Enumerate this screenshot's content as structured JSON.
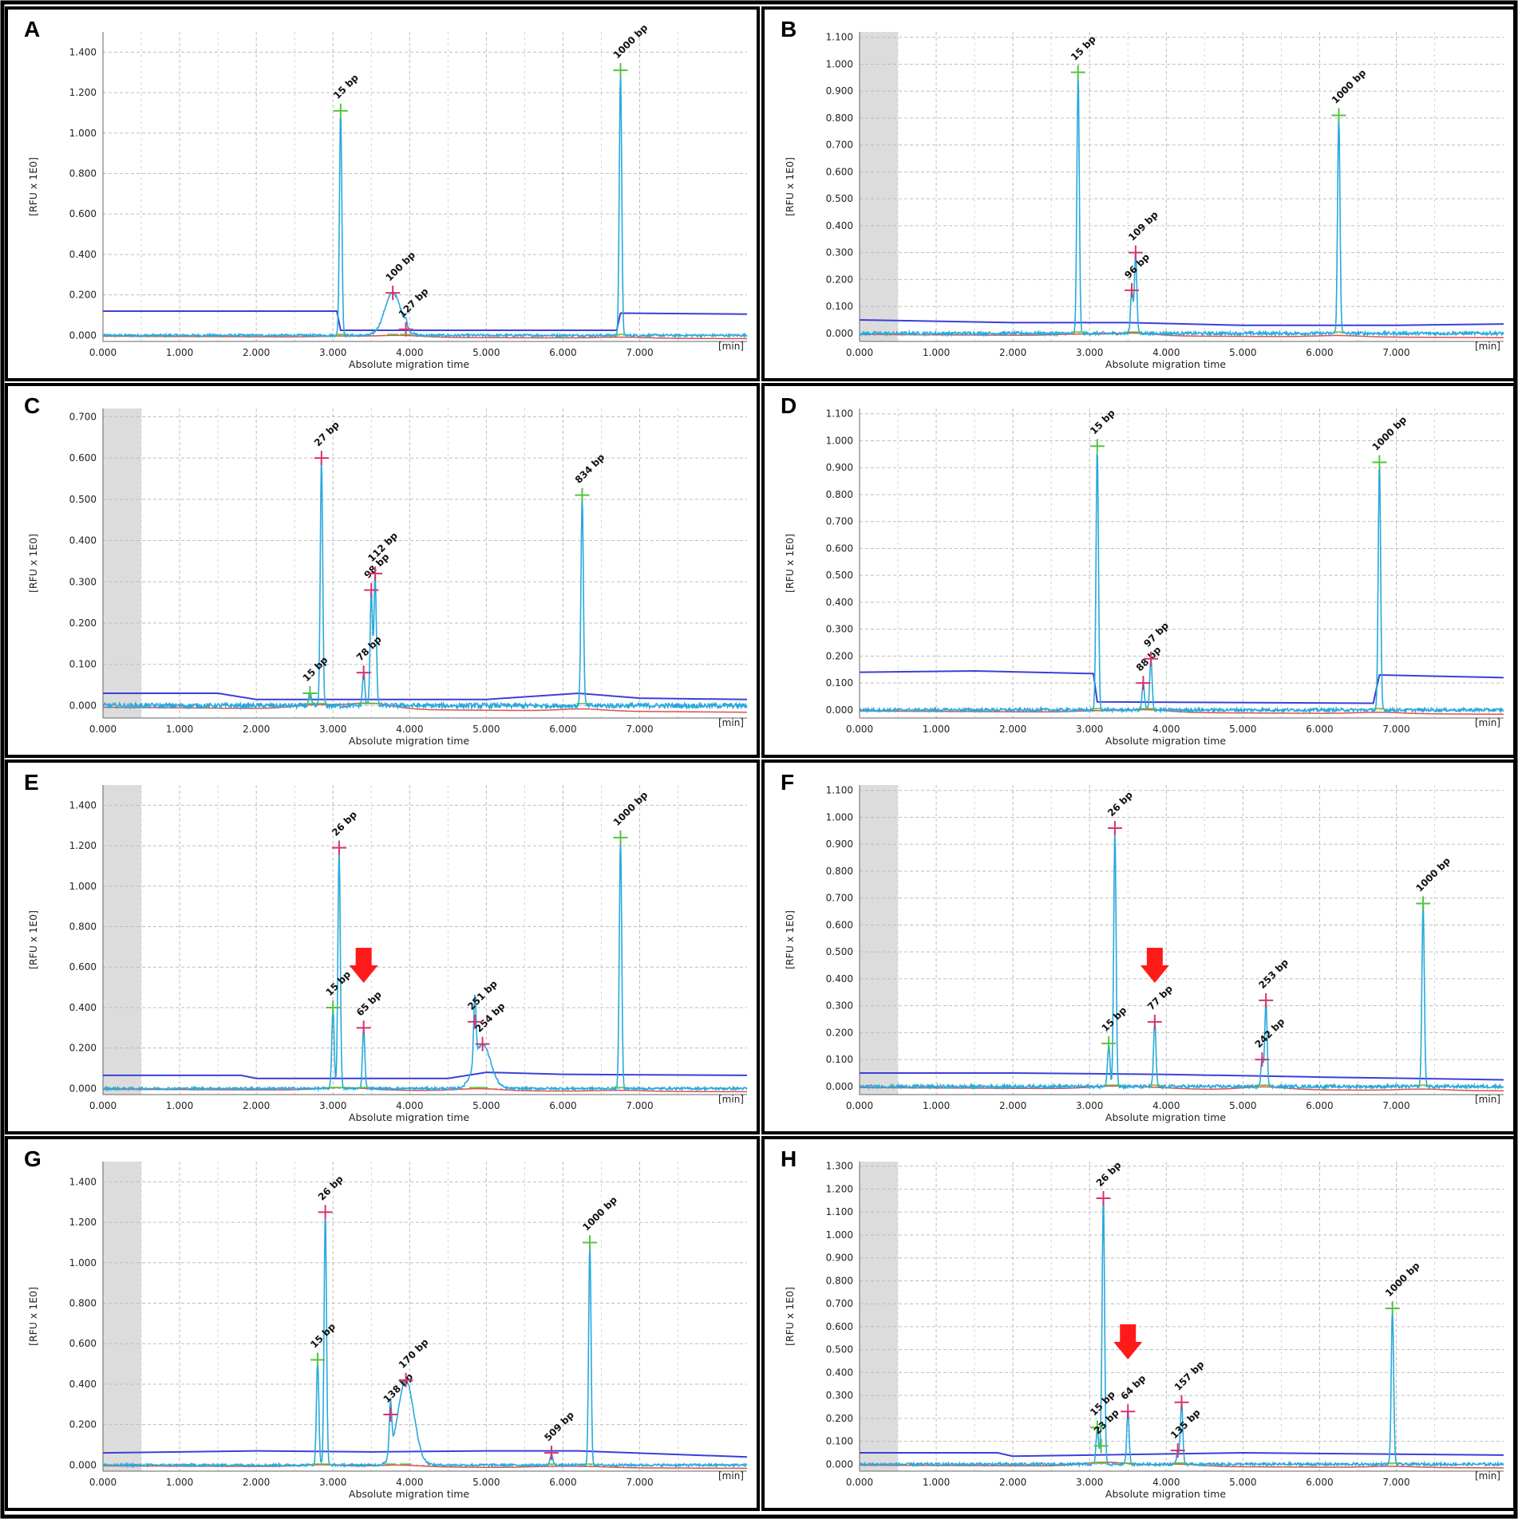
{
  "colors": {
    "trace": "#29a9dc",
    "baseline": "#3c3fd8",
    "red_line": "#e0504a",
    "peak_marker_green": "#53c441",
    "peak_marker_pink": "#d6336c",
    "arrow": "#ff1a1a",
    "grid": "#bdbdbd",
    "gray_band": "#dcdcdc"
  },
  "chart_data": [
    {
      "panel": "A",
      "type": "line",
      "xlabel": "Absolute migration time",
      "ylabel": "[RFU x 1E0]",
      "xunit": "[min]",
      "xlim": [
        0,
        8.4
      ],
      "ylim": [
        -0.03,
        1.5
      ],
      "xticks": [
        "0.000",
        "1.000",
        "2.000",
        "3.000",
        "4.000",
        "5.000",
        "6.000",
        "7.000"
      ],
      "yticks": [
        "0.000",
        "0.200",
        "0.400",
        "0.600",
        "0.800",
        "1.000",
        "1.200",
        "1.400"
      ],
      "ytick_values": [
        0,
        0.2,
        0.4,
        0.6,
        0.8,
        1.0,
        1.2,
        1.4
      ],
      "gray_band": false,
      "baseline": [
        [
          0,
          0.12
        ],
        [
          3.05,
          0.12
        ],
        [
          3.1,
          0.025
        ],
        [
          6.7,
          0.025
        ],
        [
          6.75,
          0.11
        ],
        [
          8.4,
          0.105
        ]
      ],
      "peaks": [
        {
          "label": "15 bp",
          "x": 3.1,
          "y": 1.11,
          "marker": "green"
        },
        {
          "label": "100 bp",
          "x": 3.78,
          "y": 0.21,
          "marker": "pink",
          "width": 0.15
        },
        {
          "label": "127 bp",
          "x": 3.95,
          "y": 0.03,
          "marker": "pink"
        },
        {
          "label": "1000 bp",
          "x": 6.75,
          "y": 1.31,
          "marker": "green"
        }
      ],
      "arrow_x": null
    },
    {
      "panel": "B",
      "type": "line",
      "xlabel": "Absolute migration time",
      "ylabel": "[RFU x 1E0]",
      "xunit": "[min]",
      "xlim": [
        0,
        8.4
      ],
      "ylim": [
        -0.03,
        1.12
      ],
      "xticks": [
        "0.000",
        "1.000",
        "2.000",
        "3.000",
        "4.000",
        "5.000",
        "6.000",
        "7.000"
      ],
      "yticks": [
        "0.000",
        "0.100",
        "0.200",
        "0.300",
        "0.400",
        "0.500",
        "0.600",
        "0.700",
        "0.800",
        "0.900",
        "1.000",
        "1.100"
      ],
      "ytick_values": [
        0,
        0.1,
        0.2,
        0.3,
        0.4,
        0.5,
        0.6,
        0.7,
        0.8,
        0.9,
        1.0,
        1.1
      ],
      "gray_band": true,
      "baseline": [
        [
          0,
          0.05
        ],
        [
          2,
          0.04
        ],
        [
          3.5,
          0.04
        ],
        [
          5,
          0.03
        ],
        [
          7,
          0.03
        ],
        [
          8.4,
          0.035
        ]
      ],
      "peaks": [
        {
          "label": "15 bp",
          "x": 2.85,
          "y": 0.97,
          "marker": "green"
        },
        {
          "label": "96 bp",
          "x": 3.55,
          "y": 0.16,
          "marker": "pink"
        },
        {
          "label": "109 bp",
          "x": 3.6,
          "y": 0.3,
          "marker": "pink"
        },
        {
          "label": "1000 bp",
          "x": 6.25,
          "y": 0.81,
          "marker": "green"
        }
      ],
      "arrow_x": null
    },
    {
      "panel": "C",
      "type": "line",
      "xlabel": "Absolute migration time",
      "ylabel": "[RFU x 1E0]",
      "xunit": "[min]",
      "xlim": [
        0,
        8.4
      ],
      "ylim": [
        -0.03,
        0.72
      ],
      "xticks": [
        "0.000",
        "1.000",
        "2.000",
        "3.000",
        "4.000",
        "5.000",
        "6.000",
        "7.000"
      ],
      "yticks": [
        "0.000",
        "0.100",
        "0.200",
        "0.300",
        "0.400",
        "0.500",
        "0.600",
        "0.700"
      ],
      "ytick_values": [
        0,
        0.1,
        0.2,
        0.3,
        0.4,
        0.5,
        0.6,
        0.7
      ],
      "gray_band": true,
      "baseline": [
        [
          0,
          0.03
        ],
        [
          1.5,
          0.03
        ],
        [
          2,
          0.015
        ],
        [
          5,
          0.015
        ],
        [
          6.2,
          0.03
        ],
        [
          7,
          0.018
        ],
        [
          8.4,
          0.015
        ]
      ],
      "peaks": [
        {
          "label": "15 bp",
          "x": 2.7,
          "y": 0.03,
          "marker": "green"
        },
        {
          "label": "27 bp",
          "x": 2.85,
          "y": 0.6,
          "marker": "pink"
        },
        {
          "label": "78 bp",
          "x": 3.4,
          "y": 0.08,
          "marker": "pink"
        },
        {
          "label": "98 bp",
          "x": 3.5,
          "y": 0.28,
          "marker": "pink"
        },
        {
          "label": "112 bp",
          "x": 3.55,
          "y": 0.32,
          "marker": "pink"
        },
        {
          "label": "834 bp",
          "x": 6.25,
          "y": 0.51,
          "marker": "green"
        }
      ],
      "arrow_x": null
    },
    {
      "panel": "D",
      "type": "line",
      "xlabel": "Absolute migration time",
      "ylabel": "[RFU x 1E0]",
      "xunit": "[min]",
      "xlim": [
        0,
        8.4
      ],
      "ylim": [
        -0.03,
        1.12
      ],
      "xticks": [
        "0.000",
        "1.000",
        "2.000",
        "3.000",
        "4.000",
        "5.000",
        "6.000",
        "7.000"
      ],
      "yticks": [
        "0.000",
        "0.100",
        "0.200",
        "0.300",
        "0.400",
        "0.500",
        "0.600",
        "0.700",
        "0.800",
        "0.900",
        "1.000",
        "1.100"
      ],
      "ytick_values": [
        0,
        0.1,
        0.2,
        0.3,
        0.4,
        0.5,
        0.6,
        0.7,
        0.8,
        0.9,
        1.0,
        1.1
      ],
      "gray_band": false,
      "baseline": [
        [
          0,
          0.14
        ],
        [
          1.5,
          0.145
        ],
        [
          3.05,
          0.135
        ],
        [
          3.1,
          0.03
        ],
        [
          6.7,
          0.025
        ],
        [
          6.78,
          0.13
        ],
        [
          8.4,
          0.12
        ]
      ],
      "peaks": [
        {
          "label": "15 bp",
          "x": 3.1,
          "y": 0.98,
          "marker": "green"
        },
        {
          "label": "88 bp",
          "x": 3.7,
          "y": 0.1,
          "marker": "pink"
        },
        {
          "label": "97 bp",
          "x": 3.8,
          "y": 0.19,
          "marker": "pink"
        },
        {
          "label": "1000 bp",
          "x": 6.78,
          "y": 0.92,
          "marker": "green"
        }
      ],
      "arrow_x": null
    },
    {
      "panel": "E",
      "type": "line",
      "xlabel": "Absolute migration time",
      "ylabel": "[RFU x 1E0]",
      "xunit": "[min]",
      "xlim": [
        0,
        8.4
      ],
      "ylim": [
        -0.03,
        1.5
      ],
      "xticks": [
        "0.000",
        "1.000",
        "2.000",
        "3.000",
        "4.000",
        "5.000",
        "6.000",
        "7.000"
      ],
      "yticks": [
        "0.000",
        "0.200",
        "0.400",
        "0.600",
        "0.800",
        "1.000",
        "1.200",
        "1.400"
      ],
      "ytick_values": [
        0,
        0.2,
        0.4,
        0.6,
        0.8,
        1.0,
        1.2,
        1.4
      ],
      "gray_band": true,
      "baseline": [
        [
          0,
          0.065
        ],
        [
          1.8,
          0.065
        ],
        [
          2,
          0.05
        ],
        [
          4.5,
          0.05
        ],
        [
          5,
          0.08
        ],
        [
          6,
          0.07
        ],
        [
          8.4,
          0.065
        ]
      ],
      "peaks": [
        {
          "label": "15 bp",
          "x": 3.0,
          "y": 0.4,
          "marker": "green"
        },
        {
          "label": "26 bp",
          "x": 3.08,
          "y": 1.19,
          "marker": "pink"
        },
        {
          "label": "65 bp",
          "x": 3.4,
          "y": 0.3,
          "marker": "pink"
        },
        {
          "label": "254 bp",
          "x": 4.95,
          "y": 0.22,
          "marker": "pink",
          "width": 0.15
        },
        {
          "label": "251 bp",
          "x": 4.85,
          "y": 0.33,
          "marker": "pink"
        },
        {
          "label": "1000 bp",
          "x": 6.75,
          "y": 1.24,
          "marker": "green"
        }
      ],
      "arrow_x": 3.4
    },
    {
      "panel": "F",
      "type": "line",
      "xlabel": "Absolute migration time",
      "ylabel": "[RFU x 1E0]",
      "xunit": "[min]",
      "xlim": [
        0,
        8.4
      ],
      "ylim": [
        -0.03,
        1.12
      ],
      "xticks": [
        "0.000",
        "1.000",
        "2.000",
        "3.000",
        "4.000",
        "5.000",
        "6.000",
        "7.000"
      ],
      "yticks": [
        "0.000",
        "0.100",
        "0.200",
        "0.300",
        "0.400",
        "0.500",
        "0.600",
        "0.700",
        "0.800",
        "0.900",
        "1.000",
        "1.100"
      ],
      "ytick_values": [
        0,
        0.1,
        0.2,
        0.3,
        0.4,
        0.5,
        0.6,
        0.7,
        0.8,
        0.9,
        1.0,
        1.1
      ],
      "gray_band": true,
      "baseline": [
        [
          0,
          0.05
        ],
        [
          2,
          0.05
        ],
        [
          4,
          0.045
        ],
        [
          6,
          0.035
        ],
        [
          8.4,
          0.025
        ]
      ],
      "peaks": [
        {
          "label": "15 bp",
          "x": 3.25,
          "y": 0.16,
          "marker": "green"
        },
        {
          "label": "26 bp",
          "x": 3.33,
          "y": 0.96,
          "marker": "pink"
        },
        {
          "label": "77 bp",
          "x": 3.85,
          "y": 0.24,
          "marker": "pink"
        },
        {
          "label": "242 bp",
          "x": 5.25,
          "y": 0.1,
          "marker": "pink"
        },
        {
          "label": "253 bp",
          "x": 5.3,
          "y": 0.32,
          "marker": "pink"
        },
        {
          "label": "1000 bp",
          "x": 7.35,
          "y": 0.68,
          "marker": "green"
        }
      ],
      "arrow_x": 3.85
    },
    {
      "panel": "G",
      "type": "line",
      "xlabel": "Absolute migration time",
      "ylabel": "[RFU x 1E0]",
      "xunit": "[min]",
      "xlim": [
        0,
        8.4
      ],
      "ylim": [
        -0.03,
        1.5
      ],
      "xticks": [
        "0.000",
        "1.000",
        "2.000",
        "3.000",
        "4.000",
        "5.000",
        "6.000",
        "7.000"
      ],
      "yticks": [
        "0.000",
        "0.200",
        "0.400",
        "0.600",
        "0.800",
        "1.000",
        "1.200",
        "1.400"
      ],
      "ytick_values": [
        0,
        0.2,
        0.4,
        0.6,
        0.8,
        1.0,
        1.2,
        1.4
      ],
      "gray_band": true,
      "baseline": [
        [
          0,
          0.06
        ],
        [
          2,
          0.07
        ],
        [
          3.5,
          0.065
        ],
        [
          5,
          0.07
        ],
        [
          6.2,
          0.07
        ],
        [
          8.4,
          0.04
        ]
      ],
      "peaks": [
        {
          "label": "15 bp",
          "x": 2.8,
          "y": 0.52,
          "marker": "green"
        },
        {
          "label": "26 bp",
          "x": 2.9,
          "y": 1.25,
          "marker": "pink"
        },
        {
          "label": "138 bp",
          "x": 3.75,
          "y": 0.25,
          "marker": "pink"
        },
        {
          "label": "170 bp",
          "x": 3.95,
          "y": 0.42,
          "marker": "pink",
          "width": 0.15
        },
        {
          "label": "509 bp",
          "x": 5.85,
          "y": 0.06,
          "marker": "pink"
        },
        {
          "label": "1000 bp",
          "x": 6.35,
          "y": 1.1,
          "marker": "green"
        }
      ],
      "arrow_x": null
    },
    {
      "panel": "H",
      "type": "line",
      "xlabel": "Absolute migration time",
      "ylabel": "[RFU x 1E0]",
      "xunit": "[min]",
      "xlim": [
        0,
        8.4
      ],
      "ylim": [
        -0.03,
        1.32
      ],
      "xticks": [
        "0.000",
        "1.000",
        "2.000",
        "3.000",
        "4.000",
        "5.000",
        "6.000",
        "7.000"
      ],
      "yticks": [
        "0.000",
        "0.100",
        "0.200",
        "0.300",
        "0.400",
        "0.500",
        "0.600",
        "0.700",
        "0.800",
        "0.900",
        "1.000",
        "1.100",
        "1.200",
        "1.300"
      ],
      "ytick_values": [
        0,
        0.1,
        0.2,
        0.3,
        0.4,
        0.5,
        0.6,
        0.7,
        0.8,
        0.9,
        1.0,
        1.1,
        1.2,
        1.3
      ],
      "gray_band": true,
      "baseline": [
        [
          0,
          0.05
        ],
        [
          1.8,
          0.05
        ],
        [
          2,
          0.035
        ],
        [
          3,
          0.04
        ],
        [
          5,
          0.05
        ],
        [
          8.4,
          0.04
        ]
      ],
      "peaks": [
        {
          "label": "15 bp",
          "x": 3.1,
          "y": 0.16,
          "marker": "green"
        },
        {
          "label": "23 bp",
          "x": 3.15,
          "y": 0.08,
          "marker": "green"
        },
        {
          "label": "26 bp",
          "x": 3.18,
          "y": 1.16,
          "marker": "pink"
        },
        {
          "label": "64 bp",
          "x": 3.5,
          "y": 0.23,
          "marker": "pink"
        },
        {
          "label": "135 bp",
          "x": 4.15,
          "y": 0.06,
          "marker": "pink"
        },
        {
          "label": "157 bp",
          "x": 4.2,
          "y": 0.27,
          "marker": "pink"
        },
        {
          "label": "1000 bp",
          "x": 6.95,
          "y": 0.68,
          "marker": "green"
        }
      ],
      "arrow_x": 3.5
    }
  ]
}
